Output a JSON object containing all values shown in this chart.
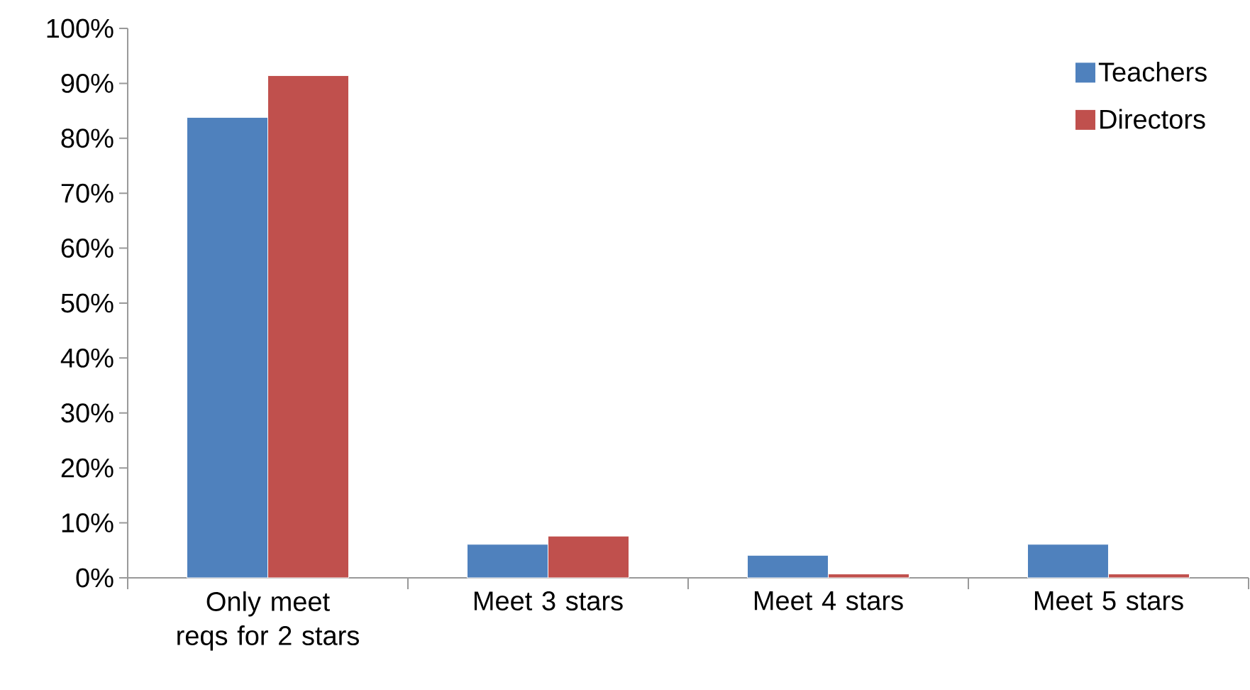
{
  "chart_data": {
    "type": "bar",
    "categories": [
      "Only meet reqs for 2 stars",
      "Meet  3 stars",
      "Meet 4 stars",
      "Meet 5 stars"
    ],
    "series": [
      {
        "name": "Teachers",
        "color": "#4f81bd",
        "values": [
          83.8,
          6.1,
          4.1,
          6.1
        ]
      },
      {
        "name": "Directors",
        "color": "#c0504d",
        "values": [
          91.4,
          7.6,
          0.7,
          0.7
        ]
      }
    ],
    "ylim": [
      0,
      100
    ],
    "yticks": [
      {
        "value": 0,
        "label": "0%"
      },
      {
        "value": 10,
        "label": "10%"
      },
      {
        "value": 20,
        "label": "20%"
      },
      {
        "value": 30,
        "label": "30%"
      },
      {
        "value": 40,
        "label": "40%"
      },
      {
        "value": 50,
        "label": "50%"
      },
      {
        "value": 60,
        "label": "60%"
      },
      {
        "value": 70,
        "label": "70%"
      },
      {
        "value": 80,
        "label": "80%"
      },
      {
        "value": 90,
        "label": "90%"
      },
      {
        "value": 100,
        "label": "100%"
      }
    ],
    "grid": false,
    "legend": "top right"
  }
}
